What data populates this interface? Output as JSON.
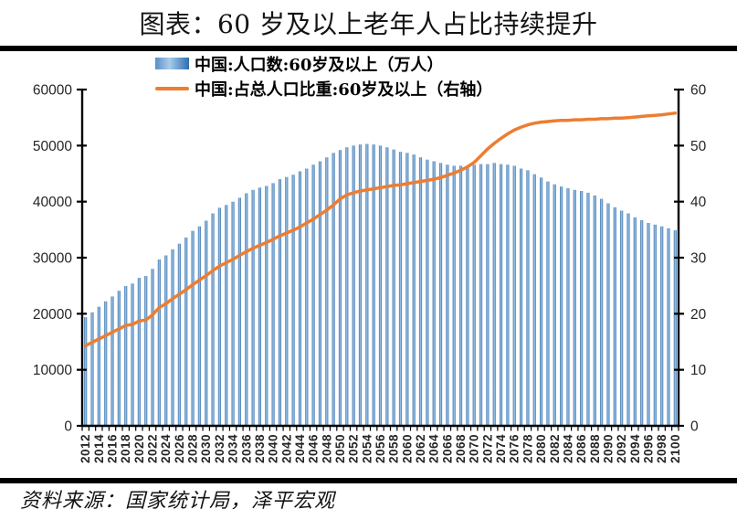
{
  "title": "图表：60 岁及以上老年人占比持续提升",
  "source": "资料来源：国家统计局，泽平宏观",
  "legend": [
    {
      "label": "中国:人口数:60岁及以上（万人）",
      "type": "bar"
    },
    {
      "label": "中国:占总人口比重:60岁及以上（右轴）",
      "type": "line"
    }
  ],
  "colors": {
    "bar_dark": "#3e74ad",
    "bar_light": "#9ec6e8",
    "line": "#ed7d31",
    "axis": "#000000",
    "tick_text": "#262626",
    "title_text": "#141414"
  },
  "chart_data": {
    "type": "bar+line combo",
    "x_label_every": 2,
    "x": [
      2012,
      2013,
      2014,
      2015,
      2016,
      2017,
      2018,
      2019,
      2020,
      2021,
      2022,
      2023,
      2024,
      2025,
      2026,
      2027,
      2028,
      2029,
      2030,
      2031,
      2032,
      2033,
      2034,
      2035,
      2036,
      2037,
      2038,
      2039,
      2040,
      2041,
      2042,
      2043,
      2044,
      2045,
      2046,
      2047,
      2048,
      2049,
      2050,
      2051,
      2052,
      2053,
      2054,
      2055,
      2056,
      2057,
      2058,
      2059,
      2060,
      2061,
      2062,
      2063,
      2064,
      2065,
      2066,
      2067,
      2068,
      2069,
      2070,
      2071,
      2072,
      2073,
      2074,
      2075,
      2076,
      2077,
      2078,
      2079,
      2080,
      2081,
      2082,
      2083,
      2084,
      2085,
      2086,
      2087,
      2088,
      2089,
      2090,
      2091,
      2092,
      2093,
      2094,
      2095,
      2096,
      2097,
      2098,
      2099,
      2100
    ],
    "left_axis": {
      "min": 0,
      "max": 60000,
      "step": 10000,
      "position": "left"
    },
    "right_axis": {
      "min": 0,
      "max": 60,
      "step": 10,
      "position": "right"
    },
    "grid": false,
    "legend_position": "top",
    "series": [
      {
        "name": "中国:人口数:60岁及以上（万人）",
        "type": "bar",
        "axis": "left",
        "values": [
          19390,
          20243,
          21242,
          22200,
          23086,
          24090,
          24949,
          25388,
          26402,
          26736,
          28004,
          29697,
          30400,
          31500,
          32500,
          33600,
          34800,
          35600,
          36600,
          37900,
          38900,
          39400,
          40000,
          40700,
          41500,
          42100,
          42500,
          42800,
          43300,
          44000,
          44400,
          44800,
          45400,
          45900,
          46600,
          47200,
          47900,
          48700,
          49200,
          49700,
          50000,
          50200,
          50300,
          50200,
          50000,
          49700,
          49300,
          48900,
          48700,
          48400,
          47900,
          47500,
          47200,
          46900,
          46600,
          46400,
          46400,
          46400,
          46600,
          46700,
          46700,
          46900,
          46700,
          46600,
          46400,
          45900,
          45600,
          44900,
          44300,
          43600,
          43100,
          42700,
          42400,
          42100,
          41900,
          41600,
          41100,
          40500,
          39700,
          39000,
          38400,
          37900,
          37200,
          36700,
          36200,
          35900,
          35600,
          35250,
          34900
        ]
      },
      {
        "name": "中国:占总人口比重:60岁及以上（右轴）",
        "type": "line",
        "axis": "right",
        "values": [
          14.3,
          14.9,
          15.5,
          16.1,
          16.7,
          17.3,
          17.9,
          18.1,
          18.7,
          18.9,
          19.8,
          21.1,
          21.8,
          22.7,
          23.5,
          24.3,
          25.2,
          26.0,
          26.8,
          27.7,
          28.5,
          29.1,
          29.7,
          30.4,
          31.1,
          31.7,
          32.2,
          32.7,
          33.3,
          33.9,
          34.4,
          34.9,
          35.5,
          36.2,
          36.9,
          37.7,
          38.5,
          39.4,
          40.5,
          41.2,
          41.6,
          41.9,
          42.1,
          42.3,
          42.5,
          42.7,
          42.9,
          43.0,
          43.2,
          43.4,
          43.6,
          43.8,
          44.0,
          44.3,
          44.7,
          45.1,
          45.6,
          46.2,
          47.0,
          48.2,
          49.4,
          50.4,
          51.3,
          52.1,
          52.8,
          53.3,
          53.7,
          54.0,
          54.2,
          54.3,
          54.4,
          54.5,
          54.5,
          54.6,
          54.6,
          54.7,
          54.7,
          54.8,
          54.8,
          54.9,
          54.9,
          55.0,
          55.1,
          55.2,
          55.3,
          55.4,
          55.5,
          55.65,
          55.8
        ]
      }
    ]
  }
}
